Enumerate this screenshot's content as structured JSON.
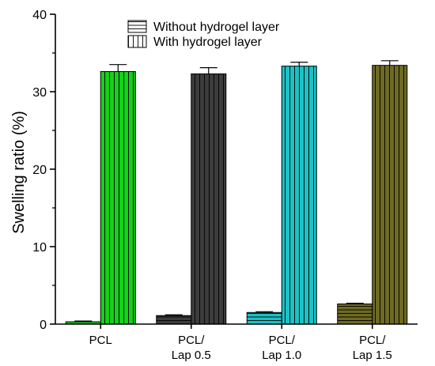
{
  "chart_data": {
    "type": "bar",
    "categories": [
      "PCL",
      "PCL/\nLap 0.5",
      "PCL/\nLap 1.0",
      "PCL/\nLap 1.5"
    ],
    "ylabel": "Swelling ratio (%)",
    "ylim": [
      0,
      40
    ],
    "yticks": [
      0,
      10,
      20,
      30,
      40
    ],
    "legend_position": "top-center",
    "series": [
      {
        "name": "Without hydrogel layer",
        "pattern": "horizontal",
        "values": [
          0.3,
          1.1,
          1.5,
          2.6
        ],
        "errors": [
          0.1,
          0.1,
          0.1,
          0.1
        ],
        "colors": [
          "#16d01a",
          "#3d3d3d",
          "#1dc1c4",
          "#6e6a24"
        ]
      },
      {
        "name": "With hydrogel layer",
        "pattern": "vertical",
        "values": [
          32.6,
          32.3,
          33.3,
          33.4
        ],
        "errors": [
          0.9,
          0.8,
          0.5,
          0.6
        ],
        "colors": [
          "#16d01a",
          "#3d3d3d",
          "#1dc1c4",
          "#6e6a24"
        ]
      }
    ]
  }
}
